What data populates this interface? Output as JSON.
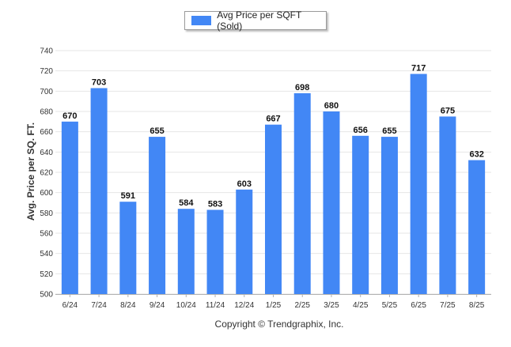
{
  "legend": {
    "label": "Avg Price per SQFT (Sold)",
    "color": "#4287f5"
  },
  "footer": "Copyright © Trendgraphix, Inc.",
  "chart_data": {
    "type": "bar",
    "title": "",
    "xlabel": "",
    "ylabel": "Avg. Price per SQ. FT.",
    "ylim": [
      500,
      740
    ],
    "ytick_step": 20,
    "grid": true,
    "legend_position": "top",
    "bar_color": "#4287f5",
    "categories": [
      "6/24",
      "7/24",
      "8/24",
      "9/24",
      "10/24",
      "11/24",
      "12/24",
      "1/25",
      "2/25",
      "3/25",
      "4/25",
      "5/25",
      "6/25",
      "7/25",
      "8/25"
    ],
    "series": [
      {
        "name": "Avg Price per SQFT (Sold)",
        "values": [
          670,
          703,
          591,
          655,
          584,
          583,
          603,
          667,
          698,
          680,
          656,
          655,
          717,
          675,
          632
        ]
      }
    ]
  }
}
